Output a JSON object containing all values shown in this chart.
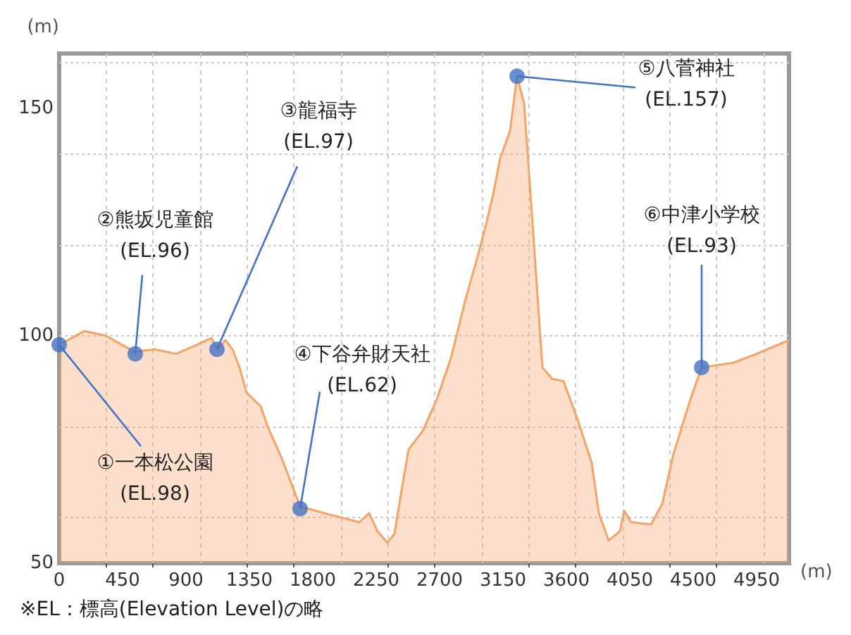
{
  "chart_data": {
    "type": "area",
    "xlabel": "(m)",
    "ylabel": "(m)",
    "xlim": [
      0,
      5180
    ],
    "ylim": [
      50,
      162
    ],
    "xticks": [
      0,
      450,
      900,
      1350,
      1800,
      2250,
      2700,
      3150,
      3600,
      4050,
      4500,
      4950
    ],
    "yticks": [
      50,
      100,
      150
    ],
    "grid": true,
    "marker": "none",
    "series": [
      {
        "color": "#f5a366",
        "x": [
          0,
          180,
          330,
          530,
          680,
          830,
          980,
          1080,
          1120,
          1180,
          1230,
          1280,
          1330,
          1430,
          1480,
          1580,
          1710,
          1880,
          2130,
          2200,
          2260,
          2330,
          2380,
          2430,
          2480,
          2580,
          2680,
          2780,
          2880,
          2980,
          3030,
          3080,
          3130,
          3200,
          3250,
          3300,
          3360,
          3430,
          3500,
          3580,
          3680,
          3780,
          3830,
          3900,
          3980,
          4010,
          4060,
          4200,
          4280,
          4360,
          4480,
          4560,
          4780,
          4950,
          5180
        ],
        "values": [
          98,
          101,
          100,
          96.5,
          97,
          96,
          98,
          99.5,
          97,
          99,
          97,
          93,
          87.5,
          84.5,
          80,
          73,
          62.5,
          61,
          59,
          61,
          57,
          54.5,
          56.5,
          66,
          75,
          79,
          86,
          95,
          107.5,
          118.5,
          124.5,
          131,
          139,
          145,
          157,
          151,
          124.5,
          93,
          90.5,
          90,
          81.5,
          72,
          61,
          55,
          57,
          61.5,
          59,
          58.5,
          63,
          74,
          86,
          93,
          94,
          96,
          99
        ]
      },
      {
        "type": "scatter",
        "color": "#4472c4",
        "marker": "circle",
        "x": [
          0,
          540,
          1120,
          1710,
          3250,
          4560
        ],
        "values": [
          98,
          96,
          97,
          62,
          157,
          93
        ]
      }
    ],
    "annotations": [
      {
        "text": "①一本松公園\n(EL.98)",
        "x": 0,
        "y": 98
      },
      {
        "text": "②熊坂児童館\n(EL.96)",
        "x": 540,
        "y": 96
      },
      {
        "text": "③龍福寺\n(EL.97)",
        "x": 1120,
        "y": 97
      },
      {
        "text": "④下谷弁財天社\n(EL.62)",
        "x": 1710,
        "y": 62
      },
      {
        "text": "⑤八菅神社\n(EL.157)",
        "x": 3250,
        "y": 157
      },
      {
        "text": "⑥中津小学校\n(EL.93)",
        "x": 4560,
        "y": 93
      },
      "※EL：標高(Elevation Level)の略"
    ]
  }
}
